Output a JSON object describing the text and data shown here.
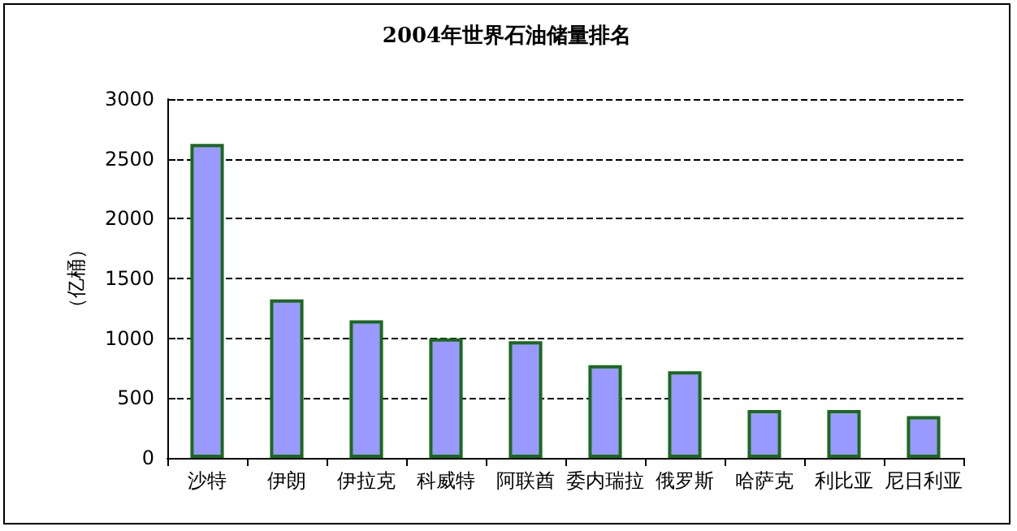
{
  "chart_data": {
    "type": "bar",
    "title": "2004年世界石油储量排名",
    "ylabel": "（亿桶）",
    "categories": [
      "沙特",
      "伊朗",
      "伊拉克",
      "科威特",
      "阿联酋",
      "委内瑞拉",
      "俄罗斯",
      "哈萨克",
      "利比亚",
      "尼日利亚"
    ],
    "values": [
      2625,
      1325,
      1150,
      1000,
      975,
      775,
      725,
      400,
      400,
      350
    ],
    "color": "#9999ff",
    "ylim": [
      0,
      3000
    ],
    "yticks": [
      0,
      500,
      1000,
      1500,
      2000,
      2500,
      3000
    ],
    "grid": "y"
  }
}
